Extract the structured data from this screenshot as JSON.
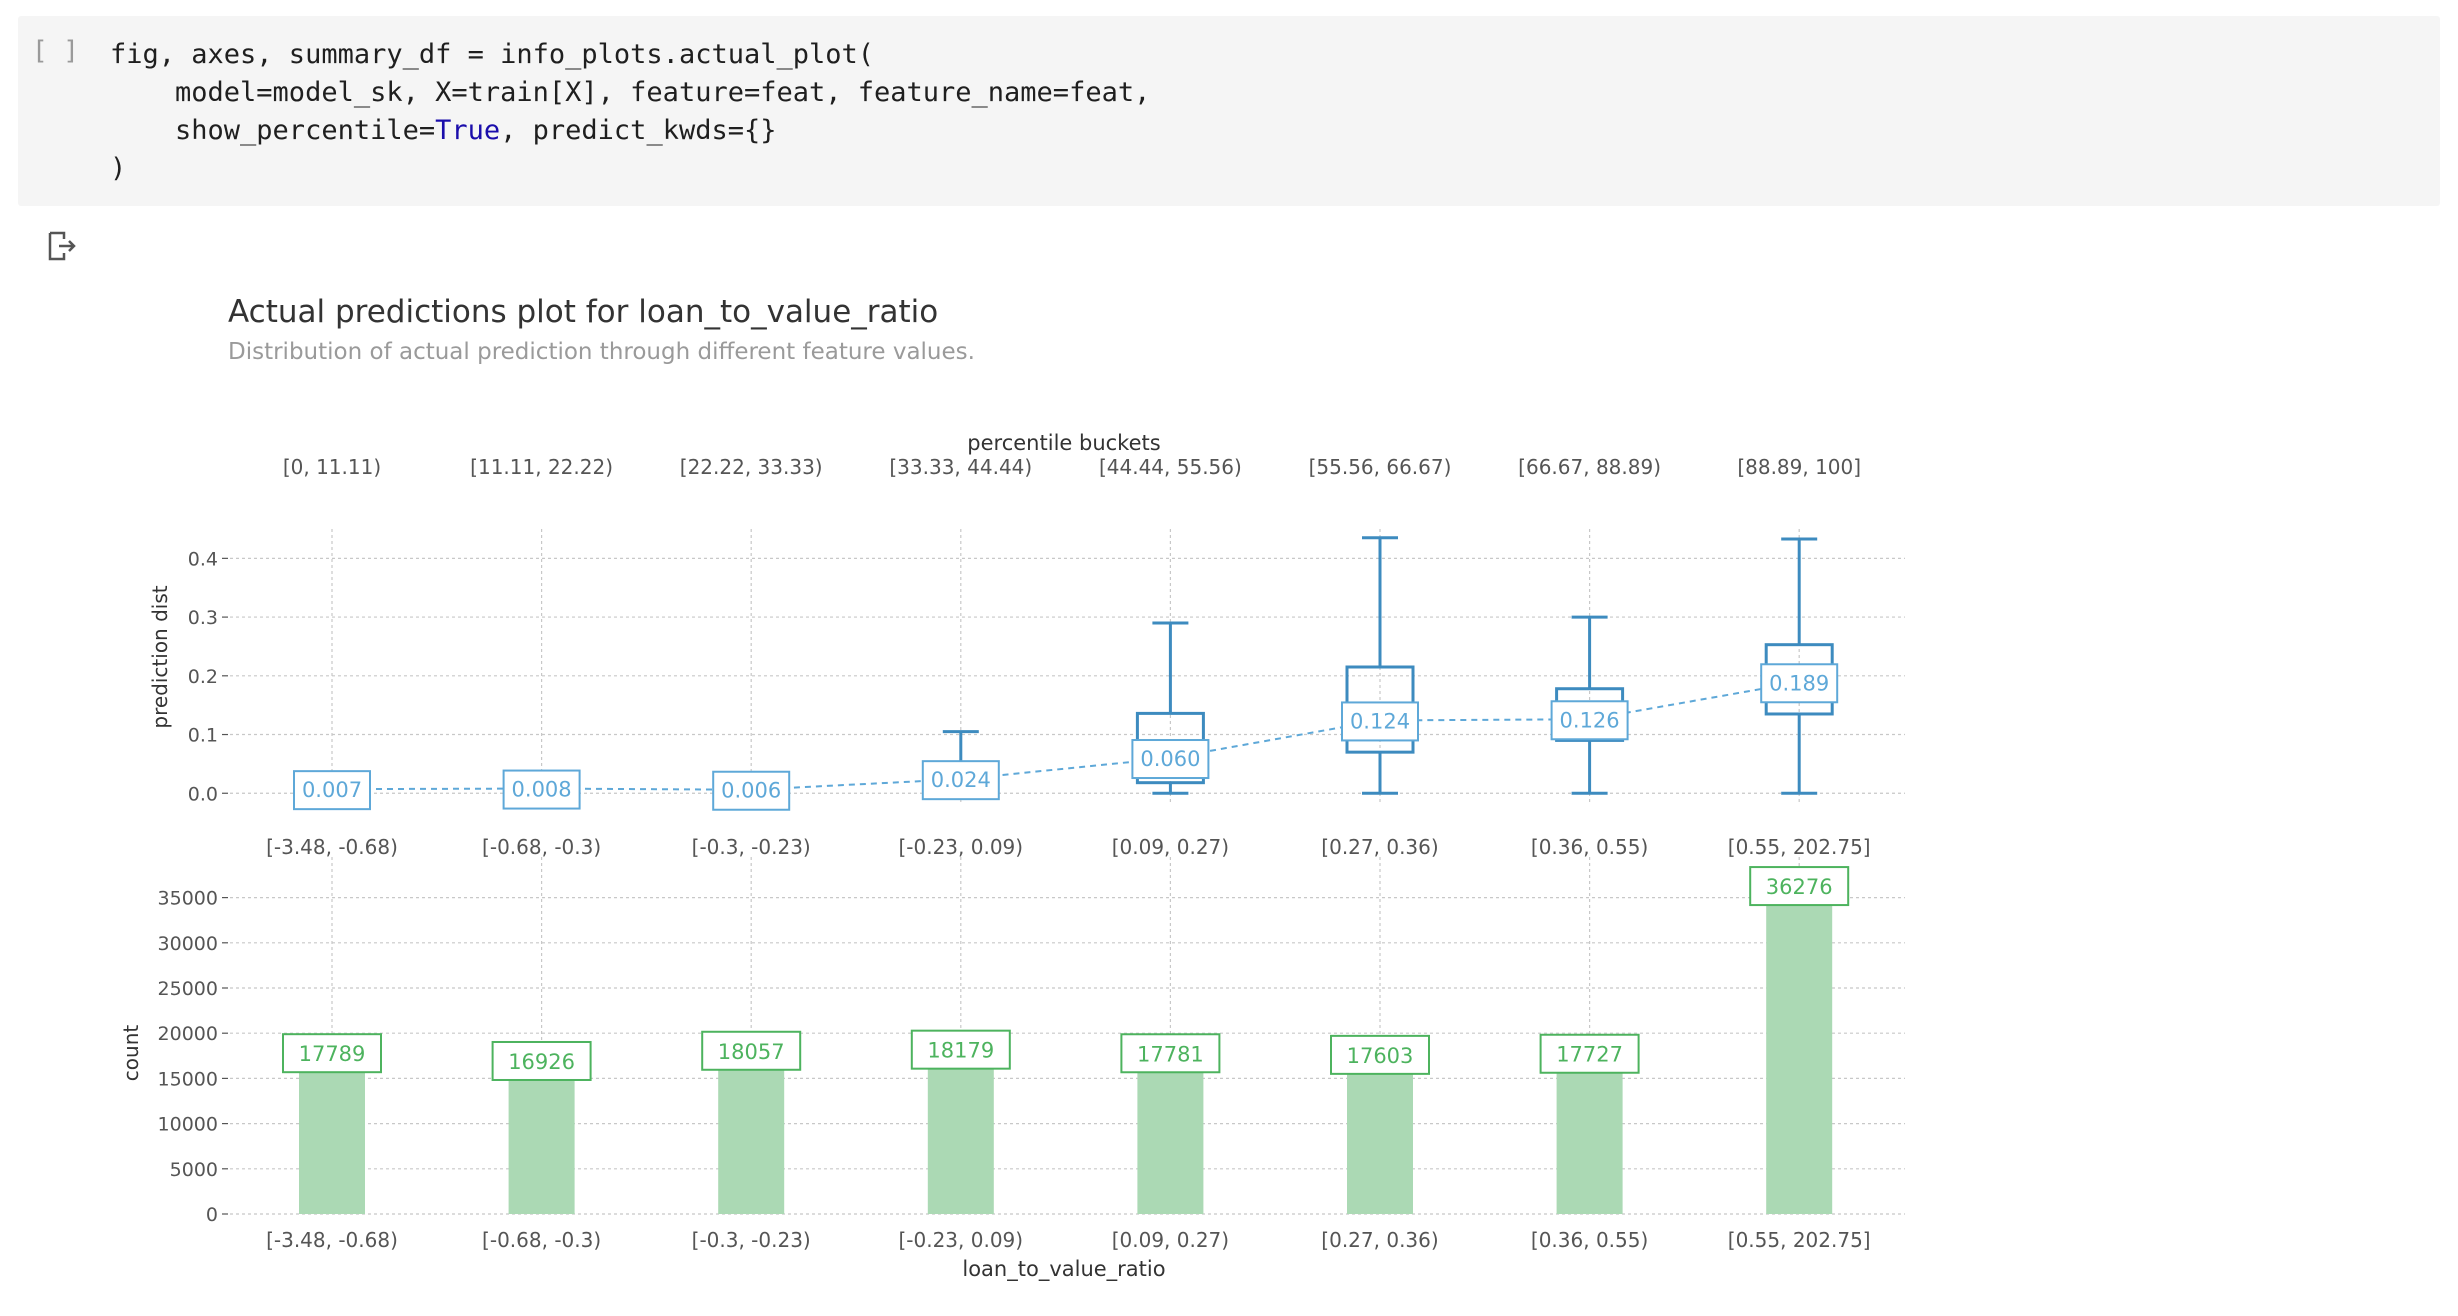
{
  "code_cell": {
    "run_label": "[ ]",
    "lines": [
      "fig, axes, summary_df = info_plots.actual_plot(",
      "    model=model_sk, X=train[X], feature=feat, feature_name=feat,",
      "    show_percentile=",
      ")"
    ],
    "keyword_true": "True",
    "line3_tail": ", predict_kwds={}"
  },
  "output": {
    "icon": "output-arrow-icon"
  },
  "colors": {
    "box": "#3d8bbf",
    "box_line": "#5ea8d8",
    "bar": "#abd9b4",
    "bar_label": "#4db35e",
    "grid": "#c8c8c8",
    "tick": "#555555"
  },
  "chart_data": [
    {
      "type": "box",
      "title": "Actual predictions plot for loan_to_value_ratio",
      "subtitle": "Distribution of actual prediction through different feature values.",
      "ylabel": "prediction dist",
      "top_axis_title": "percentile buckets",
      "percentile_buckets": [
        "[0, 11.11)",
        "[11.11, 22.22)",
        "[22.22, 33.33)",
        "[33.33, 44.44)",
        "[44.44, 55.56)",
        "[55.56, 66.67)",
        "[66.67, 88.89)",
        "[88.89, 100]"
      ],
      "categories": [
        "[-3.48, -0.68)",
        "[-0.68, -0.3)",
        "[-0.3, -0.23)",
        "[-0.23, 0.09)",
        "[0.09, 0.27)",
        "[0.27, 0.36)",
        "[0.36, 0.55)",
        "[0.55, 202.75]"
      ],
      "ylim": [
        -0.02,
        0.45
      ],
      "yticks": [
        0.0,
        0.1,
        0.2,
        0.3,
        0.4
      ],
      "ytick_labels": [
        "0.0",
        "0.1",
        "0.2",
        "0.3",
        "0.4"
      ],
      "boxes": [
        {
          "whisker_low": 0.0,
          "q1": 0.0,
          "median": 0.007,
          "q3": 0.013,
          "whisker_high": 0.032
        },
        {
          "whisker_low": 0.0,
          "q1": 0.0,
          "median": 0.008,
          "q3": 0.014,
          "whisker_high": 0.032
        },
        {
          "whisker_low": 0.0,
          "q1": 0.0,
          "median": 0.006,
          "q3": 0.01,
          "whisker_high": 0.02
        },
        {
          "whisker_low": 0.0,
          "q1": 0.005,
          "median": 0.024,
          "q3": 0.048,
          "whisker_high": 0.105
        },
        {
          "whisker_low": 0.0,
          "q1": 0.018,
          "median": 0.06,
          "q3": 0.136,
          "whisker_high": 0.29
        },
        {
          "whisker_low": 0.0,
          "q1": 0.07,
          "median": 0.124,
          "q3": 0.215,
          "whisker_high": 0.435
        },
        {
          "whisker_low": 0.0,
          "q1": 0.09,
          "median": 0.126,
          "q3": 0.178,
          "whisker_high": 0.3
        },
        {
          "whisker_low": 0.0,
          "q1": 0.135,
          "median": 0.189,
          "q3": 0.253,
          "whisker_high": 0.433
        }
      ],
      "mean_labels": [
        "0.007",
        "0.008",
        "0.006",
        "0.024",
        "0.060",
        "0.124",
        "0.126",
        "0.189"
      ],
      "mean_values": [
        0.007,
        0.008,
        0.006,
        0.024,
        0.06,
        0.124,
        0.126,
        0.189
      ]
    },
    {
      "type": "bar",
      "ylabel": "count",
      "xlabel": "loan_to_value_ratio",
      "categories": [
        "[-3.48, -0.68)",
        "[-0.68, -0.3)",
        "[-0.3, -0.23)",
        "[-0.23, 0.09)",
        "[0.09, 0.27)",
        "[0.27, 0.36)",
        "[0.36, 0.55)",
        "[0.55, 202.75]"
      ],
      "values": [
        17789,
        16926,
        18057,
        18179,
        17781,
        17603,
        17727,
        36276
      ],
      "value_labels": [
        "17789",
        "16926",
        "18057",
        "18179",
        "17781",
        "17603",
        "17727",
        "36276"
      ],
      "ylim": [
        0,
        37500
      ],
      "yticks": [
        0,
        5000,
        10000,
        15000,
        20000,
        25000,
        30000,
        35000
      ],
      "ytick_labels": [
        "0",
        "5000",
        "10000",
        "15000",
        "20000",
        "25000",
        "30000",
        "35000"
      ]
    }
  ]
}
